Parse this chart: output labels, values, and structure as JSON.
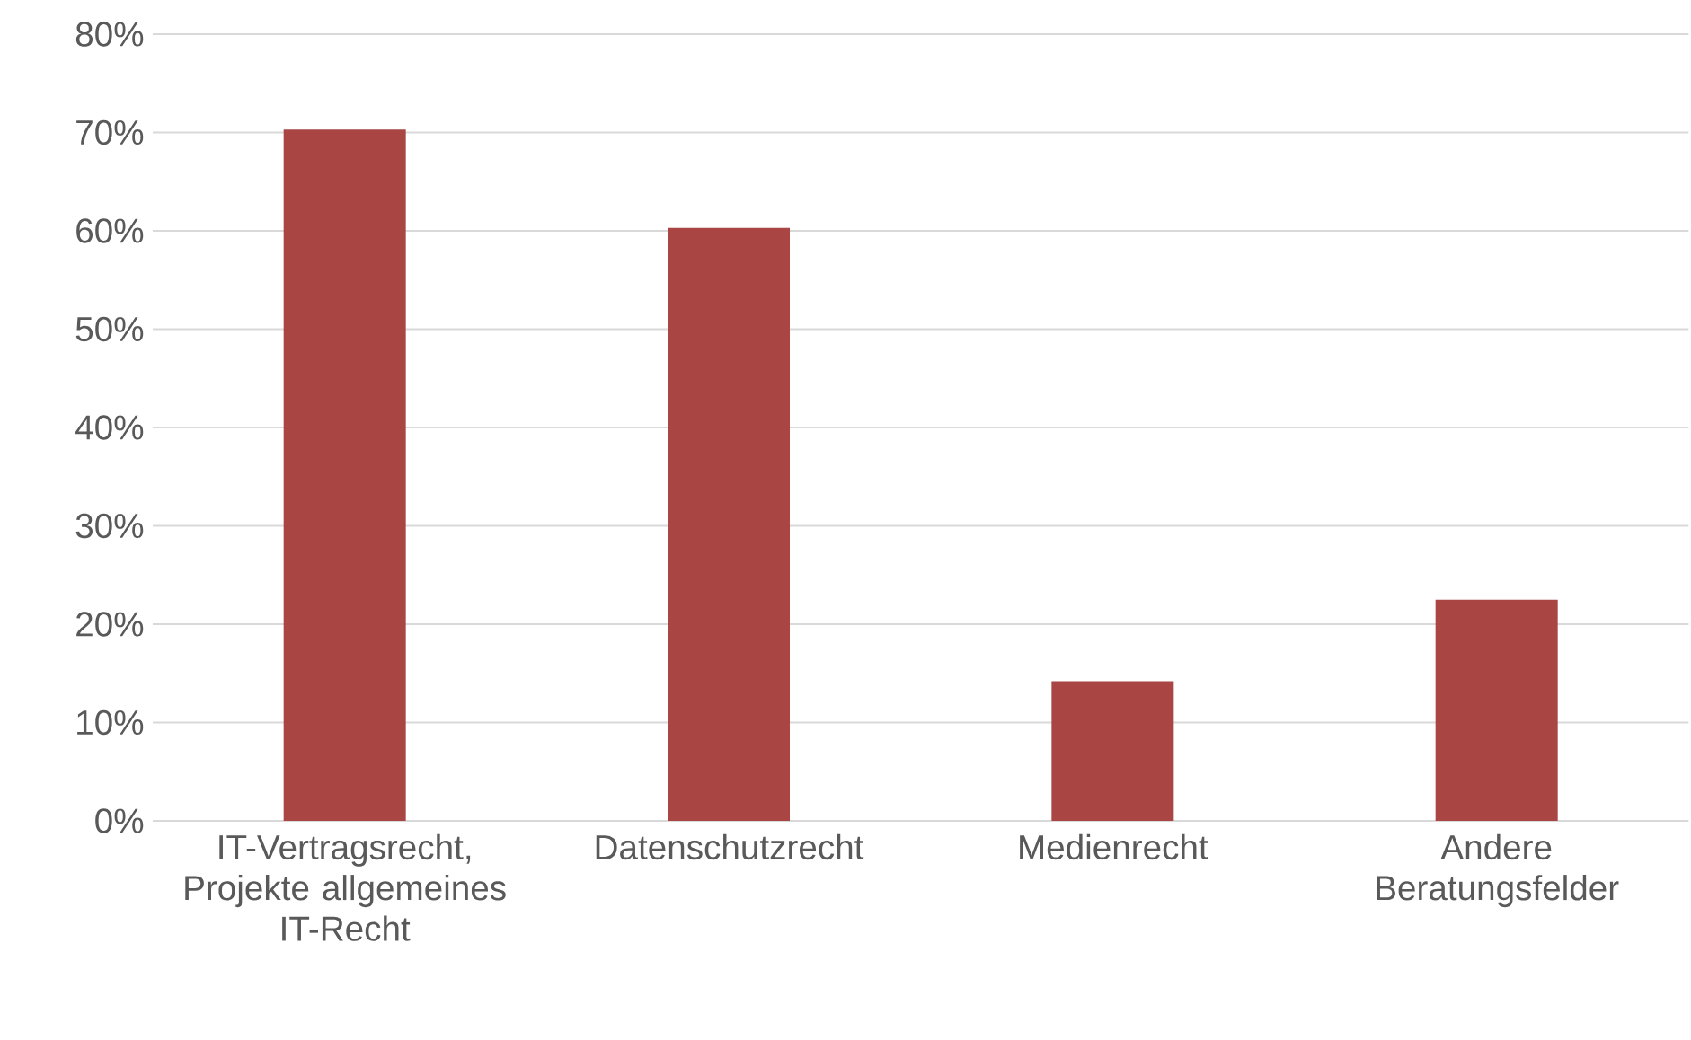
{
  "chart_data": {
    "type": "bar",
    "categories": [
      "IT-Vertragsrecht, Projekte allgemeines IT-Recht",
      "Datenschutzrecht",
      "Medienrecht",
      "Andere Beratungsfelder"
    ],
    "values": [
      70.3,
      60.3,
      14.2,
      22.5
    ],
    "color": "#a94542",
    "ylim": [
      0,
      80
    ],
    "yticks": [
      {
        "value": 0,
        "label": "0%"
      },
      {
        "value": 10,
        "label": "10%"
      },
      {
        "value": 20,
        "label": "20%"
      },
      {
        "value": 30,
        "label": "30%"
      },
      {
        "value": 40,
        "label": "40%"
      },
      {
        "value": 50,
        "label": "50%"
      },
      {
        "value": 60,
        "label": "60%"
      },
      {
        "value": 70,
        "label": "70%"
      },
      {
        "value": 80,
        "label": "80%"
      }
    ],
    "grid": "y"
  }
}
